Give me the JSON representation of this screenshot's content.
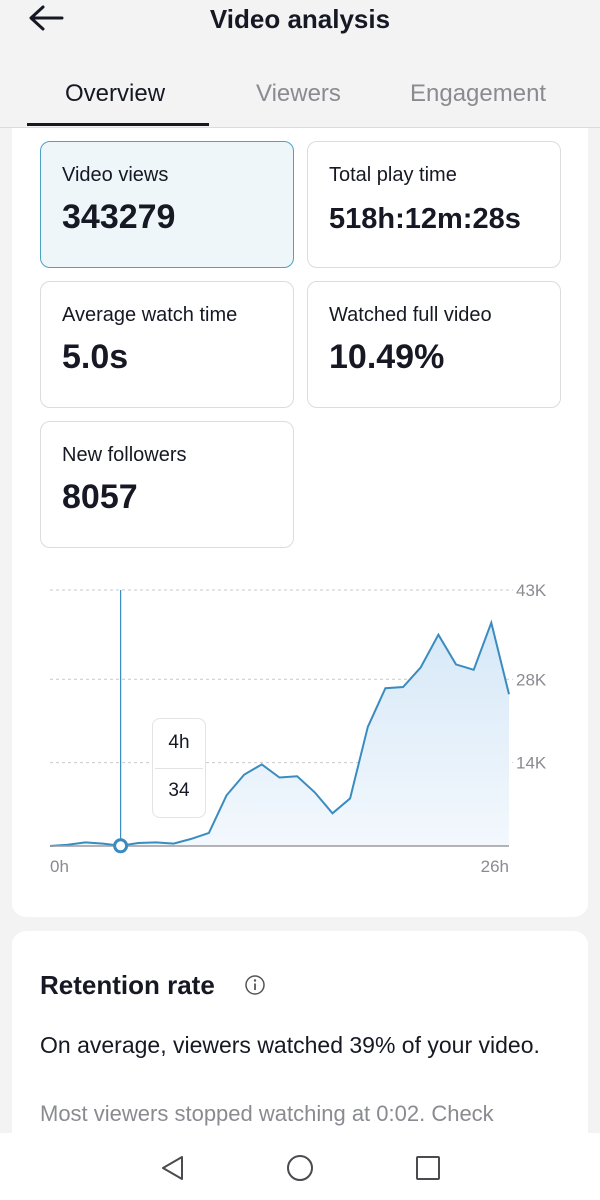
{
  "header": {
    "title": "Video analysis",
    "back_icon": "arrow-left-icon"
  },
  "tabs": [
    {
      "label": "Overview",
      "active": true
    },
    {
      "label": "Viewers",
      "active": false
    },
    {
      "label": "Engagement",
      "active": false
    }
  ],
  "stats": [
    {
      "label": "Video views",
      "value": "343279",
      "selected": true
    },
    {
      "label": "Total play time",
      "value": "518h:12m:28s",
      "selected": false
    },
    {
      "label": "Average watch time",
      "value": "5.0s",
      "selected": false
    },
    {
      "label": "Watched full video",
      "value": "10.49%",
      "selected": false
    },
    {
      "label": "New followers",
      "value": "8057",
      "selected": false
    }
  ],
  "chart_data": {
    "type": "area",
    "x_unit": "hours",
    "x_tick_labels": [
      "0h",
      "26h"
    ],
    "y_tick_labels": [
      "43K",
      "28K",
      "14K"
    ],
    "y_ticks": [
      43000,
      28000,
      14000
    ],
    "ylim": [
      0,
      43000
    ],
    "xlim": [
      0,
      26
    ],
    "grid": true,
    "x": [
      0,
      1,
      2,
      3,
      4,
      5,
      6,
      7,
      8,
      9,
      10,
      11,
      12,
      13,
      14,
      15,
      16,
      17,
      18,
      19,
      20,
      21,
      22,
      23,
      24,
      25,
      26
    ],
    "values": [
      0,
      200,
      600,
      400,
      34,
      500,
      600,
      400,
      1200,
      2200,
      8500,
      12000,
      13700,
      11500,
      11700,
      9000,
      5500,
      8000,
      20000,
      26500,
      26700,
      30000,
      35500,
      30500,
      29600,
      37500,
      25500
    ],
    "highlight": {
      "x_label": "4h",
      "value_label": "34",
      "x": 4,
      "value": 34
    },
    "colors": {
      "line": "#3a8cc0",
      "fill_top": "#d6e8f7",
      "fill_bottom": "#f3f8fd",
      "grid": "#c9c9cc"
    }
  },
  "retention": {
    "title": "Retention rate",
    "summary": "On average, viewers watched 39% of your video.",
    "detail": "Most viewers stopped watching at 0:02. Check"
  },
  "navbar": {
    "icons": [
      "back-triangle-icon",
      "home-circle-icon",
      "recents-square-icon"
    ]
  }
}
